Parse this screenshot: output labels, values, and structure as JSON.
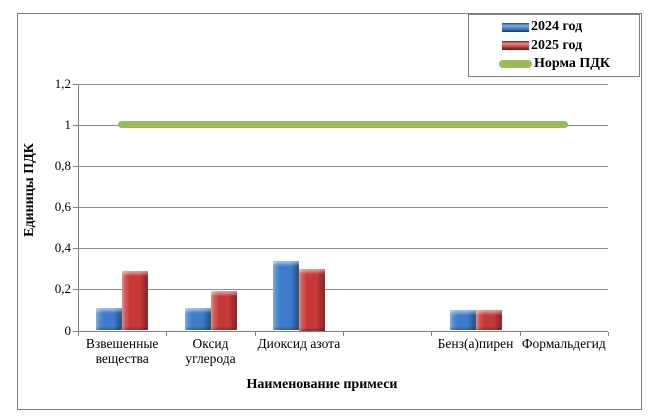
{
  "chart_data": {
    "type": "bar",
    "categories": [
      "Взвешенные вещества",
      "Оксид углерода",
      "Диоксид азота",
      "",
      "Бенз(а)пирен",
      "Формальдегид"
    ],
    "series": [
      {
        "name": "2024 год",
        "color": "#3E7CC9",
        "values": [
          0.11,
          0.11,
          0.34,
          null,
          0.1,
          null
        ]
      },
      {
        "name": "2025 год",
        "color": "#C63938",
        "values": [
          0.29,
          0.19,
          0.3,
          null,
          0.1,
          null
        ]
      }
    ],
    "norm_line": {
      "name": "Норма ПДК",
      "color": "#9BBB59",
      "value": 1.0,
      "from_category": 0,
      "to_category": 5
    },
    "title": "",
    "xlabel": "Наименование примеси",
    "ylabel": "Единицы ПДК",
    "ylim": [
      0,
      1.2
    ],
    "ytick_step": 0.2,
    "ytick_labels": [
      "0",
      "0,2",
      "0,4",
      "0,6",
      "0,8",
      "1",
      "1,2"
    ],
    "grid": true,
    "legend_position": "top-right",
    "colors": {
      "gridline": "#8A8A8A",
      "axis": "#7F7F7F",
      "frame_border": "#808080",
      "bar_2024": "#3E7CC9",
      "bar_2025": "#C63938",
      "norm": "#9BBB59"
    }
  }
}
